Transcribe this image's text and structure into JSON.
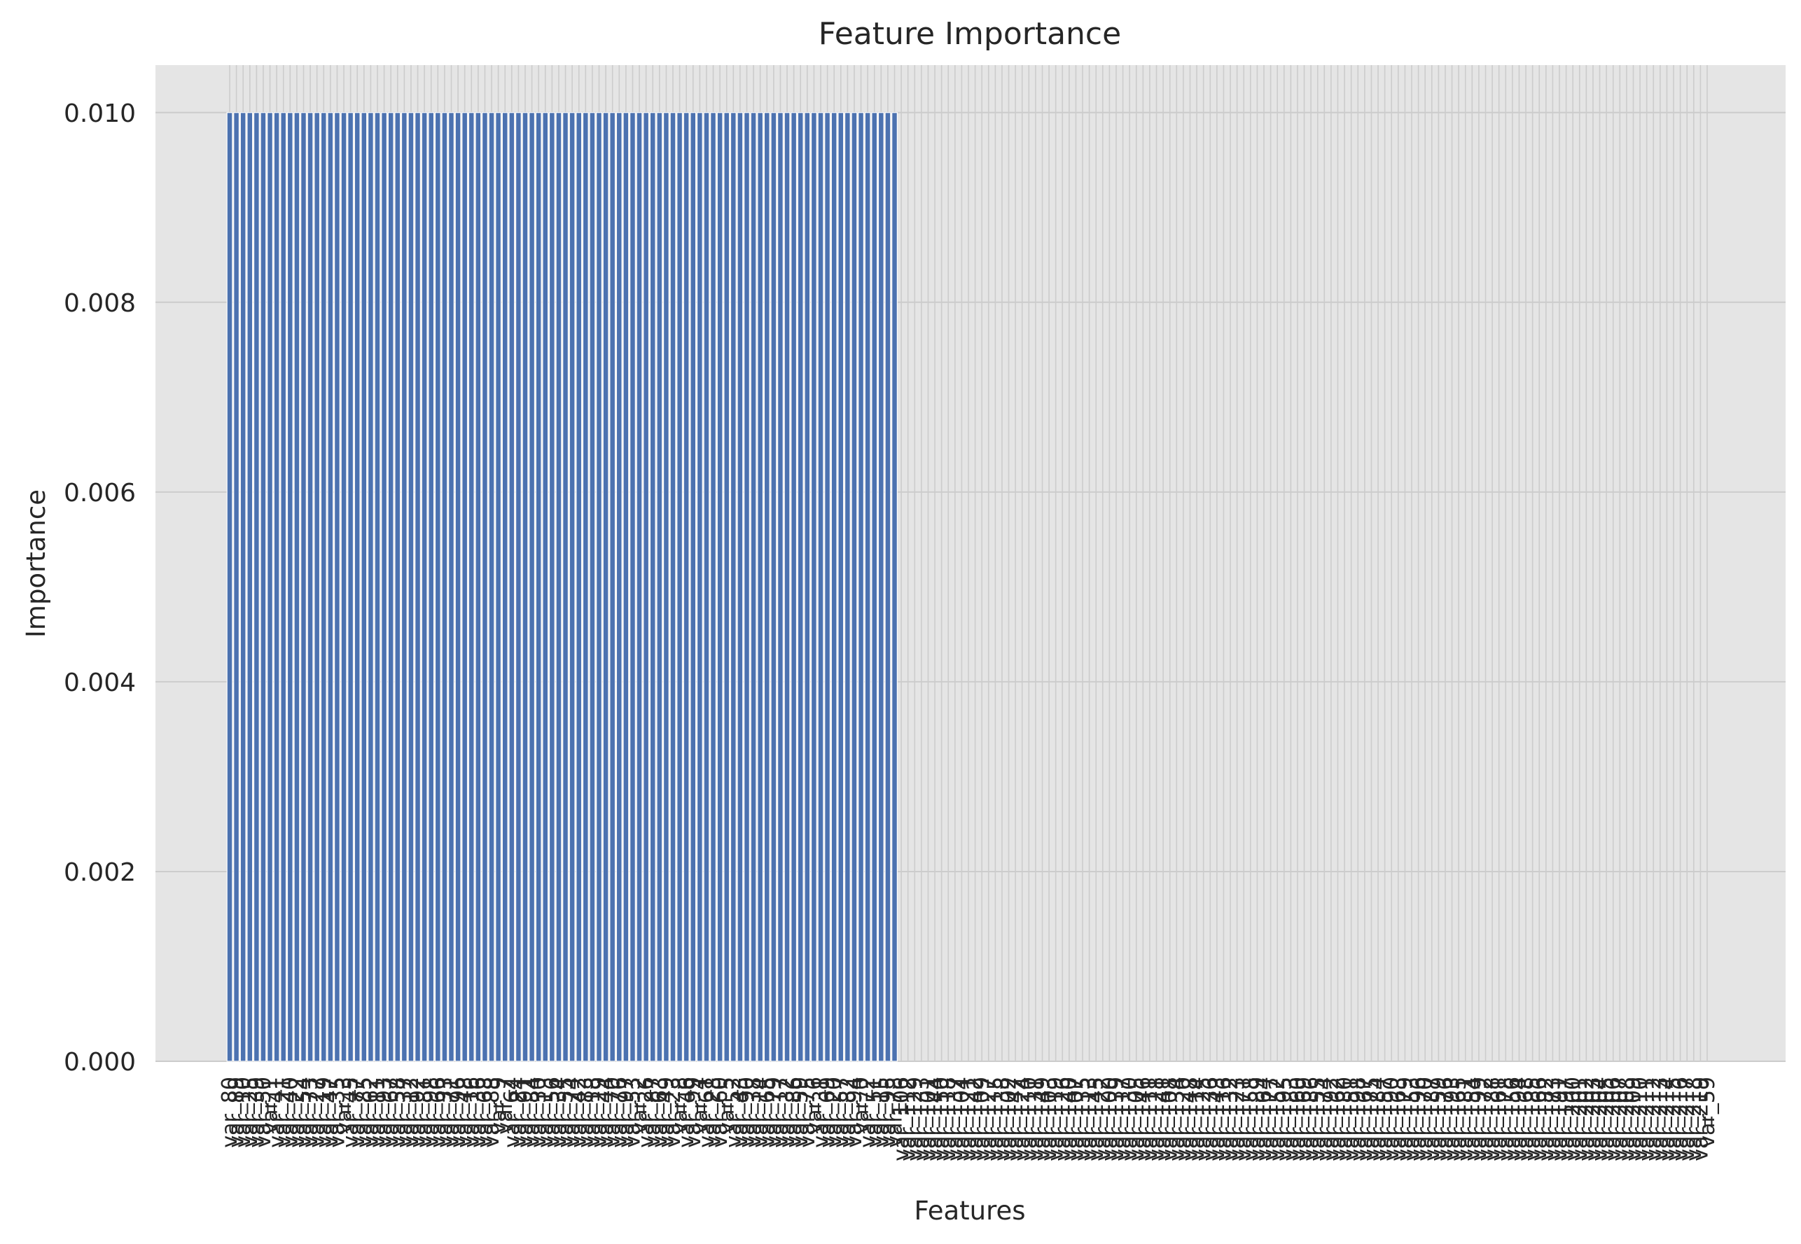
{
  "chart_data": {
    "type": "bar",
    "title": "Feature Importance",
    "xlabel": "Features",
    "ylabel": "Importance",
    "ylim": [
      0,
      0.0105
    ],
    "yticks": [
      "0.000",
      "0.002",
      "0.004",
      "0.006",
      "0.008",
      "0.010"
    ],
    "grid": true,
    "legend": "none",
    "bar_color": "#4c72b0",
    "background_color": "#e5e5e5",
    "grid_color": "#cccccc",
    "categories": [
      "var_80",
      "var_89",
      "var_10",
      "var_25",
      "var_39",
      "var_50",
      "var_1",
      "var_41",
      "var_21",
      "var_40",
      "var_22",
      "var_54",
      "var_73",
      "var_27",
      "var_19",
      "var_47",
      "var_35",
      "var_3",
      "var_45",
      "var_77",
      "var_85",
      "var_62",
      "var_11",
      "var_93",
      "var_67",
      "var_58",
      "var_37",
      "var_12",
      "var_92",
      "var_81",
      "var_98",
      "var_66",
      "var_33",
      "var_71",
      "var_96",
      "var_48",
      "var_16",
      "var_36",
      "var_68",
      "var_88",
      "var_9",
      "var_7",
      "var_64",
      "var_24",
      "var_91",
      "var_84",
      "var_30",
      "var_13",
      "var_56",
      "var_34",
      "var_55",
      "var_74",
      "var_42",
      "var_83",
      "var_18",
      "var_29",
      "var_44",
      "var_70",
      "var_76",
      "var_97",
      "var_53",
      "var_2",
      "var_26",
      "var_87",
      "var_63",
      "var_49",
      "var_23",
      "var_8",
      "var_46",
      "var_99",
      "var_4",
      "var_61",
      "var_28",
      "var_60",
      "var_5",
      "var_52",
      "var_43",
      "var_90",
      "var_38",
      "var_14",
      "var_65",
      "var_79",
      "var_17",
      "var_32",
      "var_86",
      "var_59",
      "var_75",
      "var_6",
      "var_31",
      "var_69",
      "var_20",
      "var_57",
      "var_82",
      "var_94",
      "var_0",
      "var_72",
      "var_51",
      "var_15",
      "var_95",
      "var_78",
      "var_106",
      "var_112",
      "var_129",
      "var_133",
      "var_101",
      "var_144",
      "var_150",
      "var_118",
      "var_137",
      "var_104",
      "var_121",
      "var_142",
      "var_109",
      "var_127",
      "var_115",
      "var_138",
      "var_102",
      "var_147",
      "var_124",
      "var_110",
      "var_131",
      "var_149",
      "var_103",
      "var_119",
      "var_126",
      "var_140",
      "var_107",
      "var_135",
      "var_113",
      "var_145",
      "var_122",
      "var_100",
      "var_139",
      "var_117",
      "var_130",
      "var_105",
      "var_146",
      "var_111",
      "var_128",
      "var_141",
      "var_108",
      "var_134",
      "var_120",
      "var_148",
      "var_114",
      "var_125",
      "var_136",
      "var_143",
      "var_116",
      "var_132",
      "var_123",
      "var_171",
      "var_158",
      "var_189",
      "var_164",
      "var_177",
      "var_152",
      "var_195",
      "var_183",
      "var_160",
      "var_169",
      "var_186",
      "var_155",
      "var_174",
      "var_192",
      "var_162",
      "var_180",
      "var_151",
      "var_198",
      "var_167",
      "var_175",
      "var_184",
      "var_157",
      "var_190",
      "var_163",
      "var_179",
      "var_153",
      "var_196",
      "var_170",
      "var_187",
      "var_159",
      "var_176",
      "var_193",
      "var_165",
      "var_181",
      "var_154",
      "var_199",
      "var_172",
      "var_188",
      "var_161",
      "var_178",
      "var_156",
      "var_194",
      "var_168",
      "var_185",
      "var_166",
      "var_182",
      "var_173",
      "var_191",
      "var_197",
      "var_200",
      "var_201",
      "var_202",
      "var_203",
      "var_204",
      "var_205",
      "var_206",
      "var_207",
      "var_208",
      "var_209",
      "var_210",
      "var_211",
      "var_212",
      "var_213",
      "var_214",
      "var_215",
      "var_216",
      "var_217",
      "var_218",
      "var_219",
      "var_59"
    ],
    "values": [
      0.01,
      0.01,
      0.01,
      0.01,
      0.01,
      0.01,
      0.01,
      0.01,
      0.01,
      0.01,
      0.01,
      0.01,
      0.01,
      0.01,
      0.01,
      0.01,
      0.01,
      0.01,
      0.01,
      0.01,
      0.01,
      0.01,
      0.01,
      0.01,
      0.01,
      0.01,
      0.01,
      0.01,
      0.01,
      0.01,
      0.01,
      0.01,
      0.01,
      0.01,
      0.01,
      0.01,
      0.01,
      0.01,
      0.01,
      0.01,
      0.01,
      0.01,
      0.01,
      0.01,
      0.01,
      0.01,
      0.01,
      0.01,
      0.01,
      0.01,
      0.01,
      0.01,
      0.01,
      0.01,
      0.01,
      0.01,
      0.01,
      0.01,
      0.01,
      0.01,
      0.01,
      0.01,
      0.01,
      0.01,
      0.01,
      0.01,
      0.01,
      0.01,
      0.01,
      0.01,
      0.01,
      0.01,
      0.01,
      0.01,
      0.01,
      0.01,
      0.01,
      0.01,
      0.01,
      0.01,
      0.01,
      0.01,
      0.01,
      0.01,
      0.01,
      0.01,
      0.01,
      0.01,
      0.01,
      0.01,
      0.01,
      0.01,
      0.01,
      0.01,
      0.01,
      0.01,
      0.01,
      0.01,
      0.01,
      0.01,
      0,
      0,
      0,
      0,
      0,
      0,
      0,
      0,
      0,
      0,
      0,
      0,
      0,
      0,
      0,
      0,
      0,
      0,
      0,
      0,
      0,
      0,
      0,
      0,
      0,
      0,
      0,
      0,
      0,
      0,
      0,
      0,
      0,
      0,
      0,
      0,
      0,
      0,
      0,
      0,
      0,
      0,
      0,
      0,
      0,
      0,
      0,
      0,
      0,
      0,
      0,
      0,
      0,
      0,
      0,
      0,
      0,
      0,
      0,
      0,
      0,
      0,
      0,
      0,
      0,
      0,
      0,
      0,
      0,
      0,
      0,
      0,
      0,
      0,
      0,
      0,
      0,
      0,
      0,
      0,
      0,
      0,
      0,
      0,
      0,
      0,
      0,
      0,
      0,
      0,
      0,
      0,
      0,
      0,
      0,
      0,
      0,
      0,
      0,
      0,
      0,
      0,
      0,
      0,
      0,
      0,
      0,
      0,
      0,
      0,
      0,
      0,
      0,
      0,
      0,
      0,
      0,
      0,
      0,
      0,
      0
    ]
  }
}
